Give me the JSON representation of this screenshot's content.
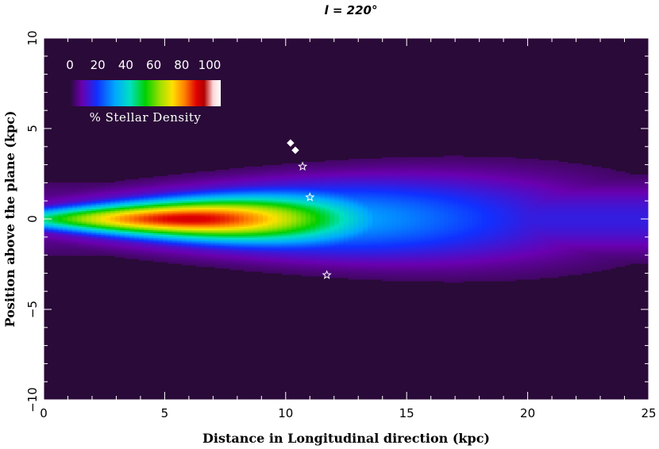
{
  "chart_data": {
    "type": "heatmap",
    "title": "l  = 220°",
    "xlabel": "Distance in Longitudinal direction (kpc)",
    "ylabel": "Position above the plane (kpc)",
    "xlim": [
      0,
      25
    ],
    "ylim": [
      -10,
      10
    ],
    "x_ticks": [
      0,
      5,
      10,
      15,
      20,
      25
    ],
    "y_ticks": [
      -10,
      -5,
      0,
      5,
      10
    ],
    "colorbar": {
      "label": "% Stellar Density",
      "ticks": [
        0,
        20,
        40,
        60,
        80,
        100
      ],
      "range": [
        0,
        100
      ]
    },
    "density_model": {
      "peak_distance_kpc": 6,
      "peak_value_percent": 85
    },
    "markers": [
      {
        "shape": "diamond",
        "x": 10.2,
        "y": 4.2
      },
      {
        "shape": "diamond",
        "x": 10.4,
        "y": 3.8
      },
      {
        "shape": "star",
        "x": 10.7,
        "y": 2.9
      },
      {
        "shape": "star",
        "x": 11.0,
        "y": 1.2
      },
      {
        "shape": "star",
        "x": 11.7,
        "y": -3.1
      }
    ],
    "colors": {
      "background": "#2a0a38",
      "marker": "#ffffff"
    }
  }
}
